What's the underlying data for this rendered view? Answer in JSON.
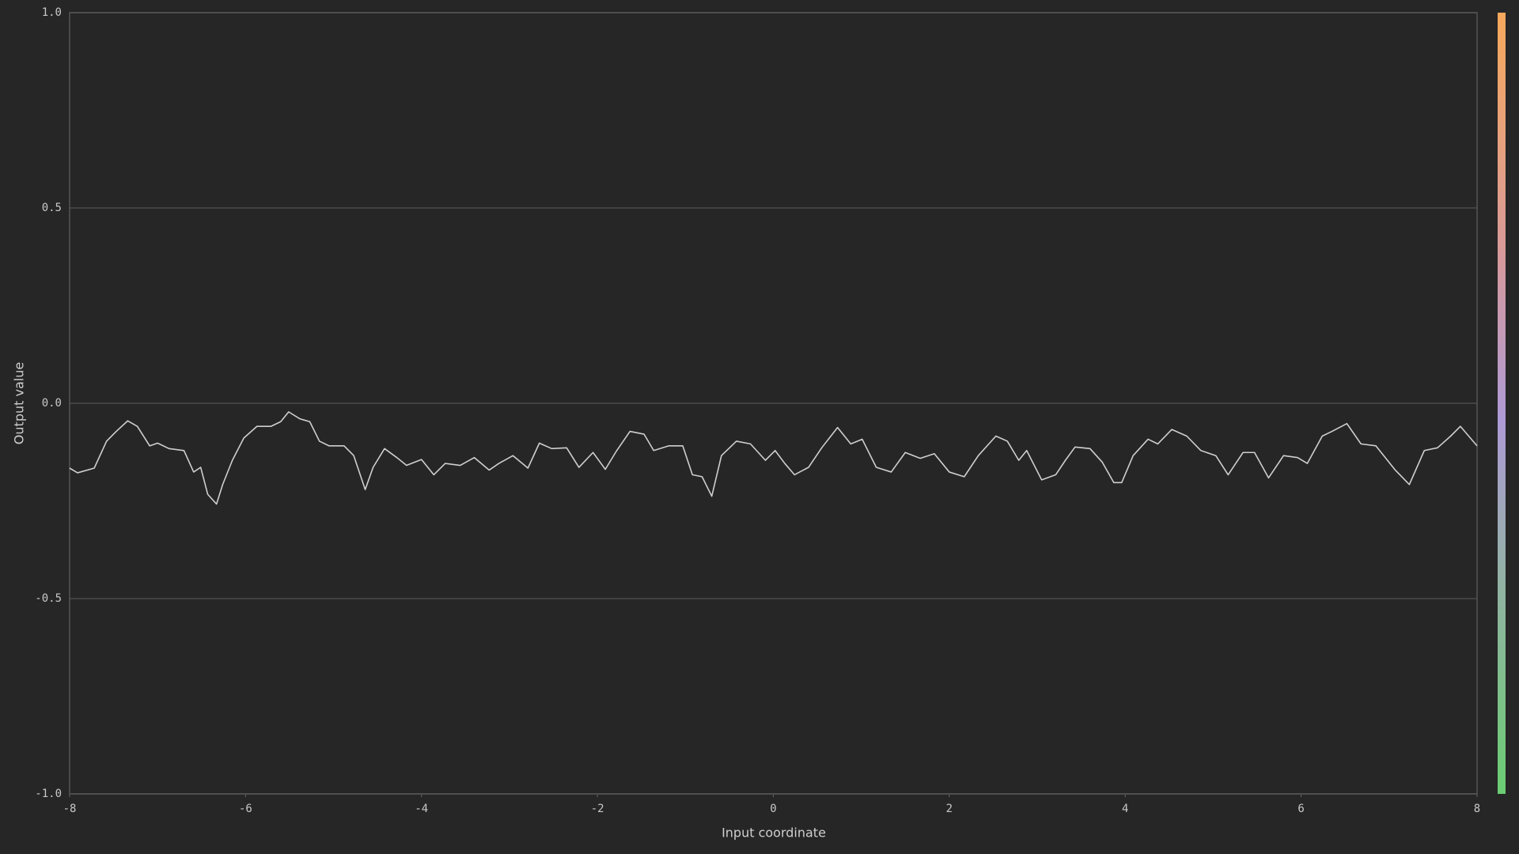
{
  "chart_data": {
    "type": "line",
    "x_label": "Input coordinate",
    "y_label": "Output value",
    "color": "#cfcfcf",
    "xlim": [
      -8,
      8
    ],
    "ylim": [
      -1,
      1
    ],
    "xticks": [
      -8,
      -6,
      -4,
      -2,
      0,
      2,
      4,
      6,
      8
    ],
    "yticks": [
      {
        "value": -1,
        "label": "-1.0"
      },
      -0.5,
      {
        "value": 0,
        "label": "0.0"
      },
      0.5,
      {
        "value": 1,
        "label": "1.0"
      }
    ],
    "grid": true,
    "x": [
      -8.0,
      -7.91,
      -7.72,
      -7.58,
      -7.47,
      -7.34,
      -7.23,
      -7.09,
      -7.0,
      -6.87,
      -6.7,
      -6.59,
      -6.51,
      -6.43,
      -6.33,
      -6.26,
      -6.15,
      -6.02,
      -5.87,
      -5.71,
      -5.6,
      -5.51,
      -5.38,
      -5.27,
      -5.16,
      -5.05,
      -4.88,
      -4.77,
      -4.64,
      -4.55,
      -4.42,
      -4.28,
      -4.17,
      -4.0,
      -3.86,
      -3.73,
      -3.56,
      -3.4,
      -3.23,
      -3.12,
      -2.96,
      -2.79,
      -2.66,
      -2.52,
      -2.35,
      -2.21,
      -2.05,
      -1.91,
      -1.78,
      -1.63,
      -1.47,
      -1.36,
      -1.19,
      -1.03,
      -0.92,
      -0.81,
      -0.7,
      -0.59,
      -0.42,
      -0.26,
      -0.09,
      0.02,
      0.13,
      0.24,
      0.4,
      0.55,
      0.73,
      0.88,
      1.01,
      1.17,
      1.34,
      1.5,
      1.67,
      1.83,
      2.0,
      2.17,
      2.33,
      2.53,
      2.66,
      2.79,
      2.88,
      3.05,
      3.21,
      3.32,
      3.43,
      3.6,
      3.74,
      3.87,
      3.96,
      4.09,
      4.26,
      4.37,
      4.53,
      4.7,
      4.86,
      5.03,
      5.17,
      5.34,
      5.47,
      5.63,
      5.8,
      5.96,
      6.07,
      6.24,
      6.35,
      6.52,
      6.68,
      6.85,
      7.07,
      7.23,
      7.4,
      7.55,
      7.7,
      7.81,
      8.0
    ],
    "values": [
      -0.166,
      -0.178,
      -0.166,
      -0.097,
      -0.072,
      -0.045,
      -0.059,
      -0.109,
      -0.102,
      -0.116,
      -0.121,
      -0.176,
      -0.164,
      -0.233,
      -0.258,
      -0.208,
      -0.146,
      -0.089,
      -0.059,
      -0.059,
      -0.047,
      -0.022,
      -0.04,
      -0.047,
      -0.097,
      -0.109,
      -0.109,
      -0.134,
      -0.221,
      -0.164,
      -0.116,
      -0.139,
      -0.159,
      -0.144,
      -0.183,
      -0.154,
      -0.159,
      -0.139,
      -0.171,
      -0.154,
      -0.134,
      -0.166,
      -0.102,
      -0.116,
      -0.114,
      -0.164,
      -0.126,
      -0.169,
      -0.121,
      -0.072,
      -0.079,
      -0.121,
      -0.109,
      -0.109,
      -0.183,
      -0.188,
      -0.238,
      -0.134,
      -0.097,
      -0.104,
      -0.146,
      -0.121,
      -0.154,
      -0.183,
      -0.164,
      -0.114,
      -0.062,
      -0.104,
      -0.092,
      -0.164,
      -0.176,
      -0.126,
      -0.141,
      -0.129,
      -0.176,
      -0.188,
      -0.134,
      -0.084,
      -0.097,
      -0.146,
      -0.121,
      -0.196,
      -0.183,
      -0.146,
      -0.112,
      -0.116,
      -0.151,
      -0.203,
      -0.203,
      -0.134,
      -0.092,
      -0.104,
      -0.067,
      -0.084,
      -0.121,
      -0.134,
      -0.183,
      -0.126,
      -0.126,
      -0.191,
      -0.134,
      -0.139,
      -0.154,
      -0.084,
      -0.072,
      -0.052,
      -0.104,
      -0.109,
      -0.171,
      -0.208,
      -0.121,
      -0.114,
      -0.084,
      -0.059,
      -0.109
    ]
  }
}
